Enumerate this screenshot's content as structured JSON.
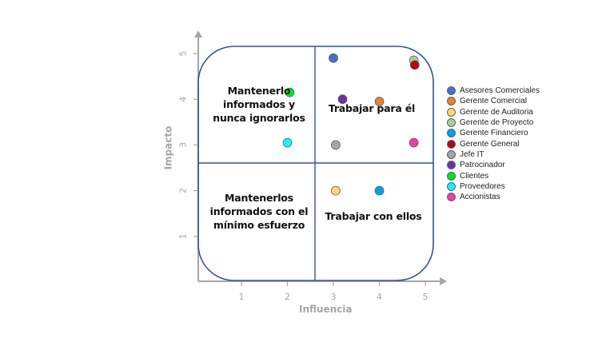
{
  "chart_data": {
    "type": "scatter",
    "title": "",
    "xlabel": "Influencia",
    "ylabel": "Impacto",
    "xlim": [
      0,
      5.3
    ],
    "ylim": [
      0,
      5.3
    ],
    "x_ticks": [
      "1",
      "2",
      "3",
      "4",
      "5"
    ],
    "y_ticks": [
      "1",
      "2",
      "3",
      "4",
      "5"
    ],
    "grid": false,
    "legend_position": "right",
    "quadrant_divider": {
      "x": 2.6,
      "y": 2.6
    },
    "quadrants": [
      {
        "position": "top-left",
        "label": "Mantenerlo informados y nunca ignorarlos"
      },
      {
        "position": "top-right",
        "label": "Trabajar para él"
      },
      {
        "position": "bottom-left",
        "label": "Mantenerlos informados con el mínimo esfuerzo"
      },
      {
        "position": "bottom-right",
        "label": "Trabajar con ellos"
      }
    ],
    "series": [
      {
        "name": "Asesores Comerciales",
        "color": "#4472c4",
        "x": 3.0,
        "y": 4.9
      },
      {
        "name": "Gerente Comercial",
        "color": "#ed7d31",
        "x": 4.0,
        "y": 3.95
      },
      {
        "name": "Gerente de Auditoria",
        "color": "#ffd966",
        "x": 3.05,
        "y": 2.0
      },
      {
        "name": "Gerente de Proyecto",
        "color": "#a9d18e",
        "x": 4.75,
        "y": 4.85
      },
      {
        "name": "Gerente Financiero",
        "color": "#00a2e8",
        "x": 4.0,
        "y": 2.0
      },
      {
        "name": "Gerente General",
        "color": "#c00000",
        "x": 4.77,
        "y": 4.75
      },
      {
        "name": "Jefe IT",
        "color": "#a5a5a5",
        "x": 3.05,
        "y": 3.0
      },
      {
        "name": "Patrocinador",
        "color": "#7030a0",
        "x": 3.2,
        "y": 4.0
      },
      {
        "name": "Clientes",
        "color": "#00e61a",
        "x": 2.05,
        "y": 4.15
      },
      {
        "name": "Proveedores",
        "color": "#19f0ff",
        "x": 2.0,
        "y": 3.05
      },
      {
        "name": "Accionistas",
        "color": "#f03caa",
        "x": 4.75,
        "y": 3.05
      }
    ]
  },
  "labels": {
    "q_tl": "Mantenerlo informados y nunca ignorarlos",
    "q_tr": "Trabajar para él",
    "q_bl": "Mantenerlos informados con el mínimo esfuerzo",
    "q_br": "Trabajar con ellos",
    "xlabel": "Influencia",
    "ylabel": "Impacto"
  },
  "legend": [
    {
      "label": "Asesores Comerciales",
      "color": "#4472c4"
    },
    {
      "label": "Gerente Comercial",
      "color": "#ed7d31"
    },
    {
      "label": "Gerente de Auditoria",
      "color": "#ffd966"
    },
    {
      "label": "Gerente de Proyecto",
      "color": "#a9d18e"
    },
    {
      "label": "Gerente Financiero",
      "color": "#00a2e8"
    },
    {
      "label": "Gerente General",
      "color": "#c00000"
    },
    {
      "label": "Jefe IT",
      "color": "#a5a5a5"
    },
    {
      "label": "Patrocinador",
      "color": "#7030a0"
    },
    {
      "label": "Clientes",
      "color": "#00e61a"
    },
    {
      "label": "Proveedores",
      "color": "#19f0ff"
    },
    {
      "label": "Accionistas",
      "color": "#f03caa"
    }
  ]
}
